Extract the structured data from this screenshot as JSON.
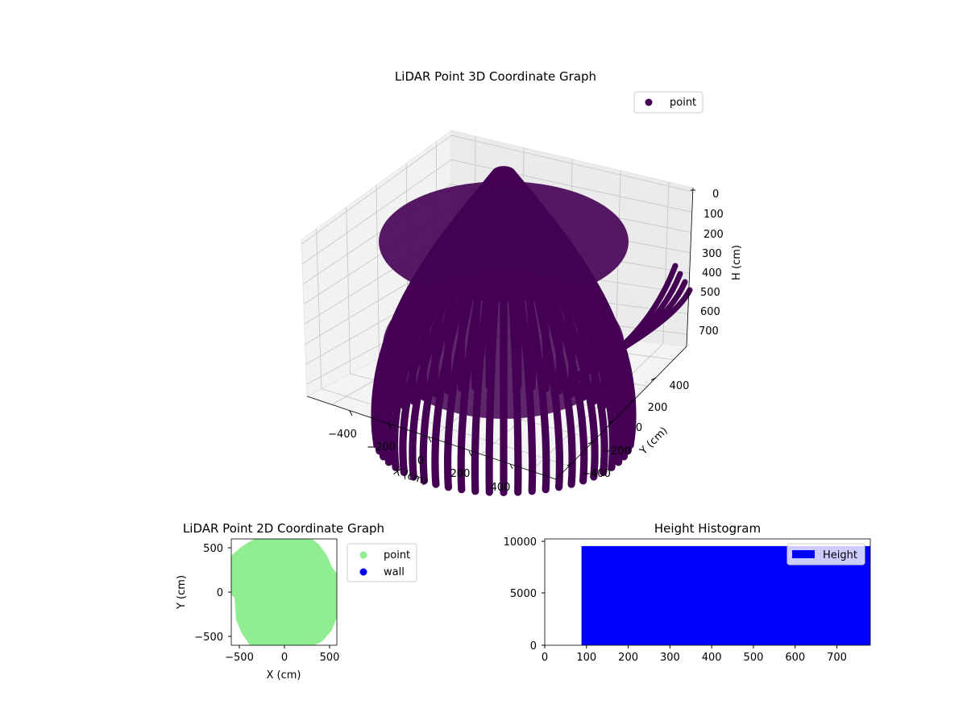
{
  "chart_data": [
    {
      "type": "scatter",
      "projection": "3d",
      "title": "LiDAR Point 3D Coordinate Graph",
      "xlabel": "X (cm)",
      "ylabel": "Y (cm)",
      "zlabel": "H (cm)",
      "xlim": [
        -550,
        550
      ],
      "ylim": [
        -550,
        550
      ],
      "zlim": [
        0,
        780
      ],
      "z_inverted": true,
      "xticks": [
        "−400",
        "−200",
        "0",
        "200",
        "400"
      ],
      "yticks": [
        "−400",
        "−200",
        "0",
        "200",
        "400"
      ],
      "zticks": [
        "0",
        "100",
        "200",
        "300",
        "400",
        "500",
        "600",
        "700"
      ],
      "grid": true,
      "legend": "top-right",
      "series": [
        {
          "name": "point",
          "color": "#440154",
          "description": "dense radial beam sweeps forming a dome/cylinder point cloud"
        }
      ]
    },
    {
      "type": "scatter",
      "title": "LiDAR Point 2D Coordinate Graph",
      "xlabel": "X (cm)",
      "ylabel": "Y (cm)",
      "xlim": [
        -580,
        580
      ],
      "ylim": [
        -600,
        600
      ],
      "xticks": [
        "−500",
        "0",
        "500"
      ],
      "yticks": [
        "−500",
        "0",
        "500"
      ],
      "legend": "outside-right",
      "series": [
        {
          "name": "point",
          "color": "#90ee90"
        },
        {
          "name": "wall",
          "color": "#0000ff"
        }
      ]
    },
    {
      "type": "bar",
      "title": "Height Histogram",
      "xlim": [
        0,
        780
      ],
      "ylim": [
        0,
        10400
      ],
      "xticks": [
        "0",
        "100",
        "200",
        "300",
        "400",
        "500",
        "600",
        "700"
      ],
      "yticks": [
        "0",
        "5000",
        "10000"
      ],
      "legend": "top-right",
      "series": [
        {
          "name": "Height",
          "color": "#0000ff",
          "bins": [
            {
              "x0": 88,
              "x1": 780,
              "count": 9700
            }
          ]
        }
      ]
    }
  ]
}
